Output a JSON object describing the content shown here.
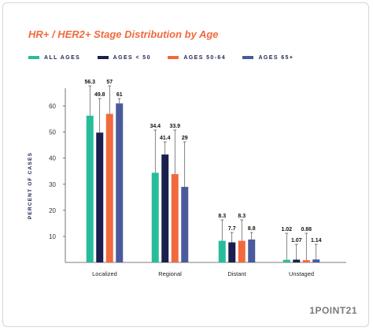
{
  "chart_data": {
    "type": "bar",
    "title": "HR+ / HER2+ Stage Distribution by Age",
    "ylabel": "PERCENT OF CASES",
    "xlabel": "",
    "ylim": [
      0,
      65
    ],
    "yticks": [
      10,
      20,
      30,
      40,
      50,
      60
    ],
    "grid": false,
    "legend_position": "top-left",
    "categories": [
      "Localized",
      "Regional",
      "Distant",
      "Unstaged"
    ],
    "series": [
      {
        "name": "ALL AGES",
        "color": "#27bd9b",
        "values": [
          56.3,
          34.4,
          8.3,
          1.02
        ],
        "labels": [
          "56.3",
          "34.4",
          "8.3",
          "1.02"
        ]
      },
      {
        "name": "AGES < 50",
        "color": "#1a1f4e",
        "values": [
          49.8,
          41.4,
          7.7,
          1.07
        ],
        "labels": [
          "49.8",
          "41.4",
          "7.7",
          "1.07"
        ]
      },
      {
        "name": "AGES 50-64",
        "color": "#f06a3d",
        "values": [
          57,
          33.9,
          8.3,
          0.88
        ],
        "labels": [
          "57",
          "33.9",
          "8.3",
          "0.88"
        ]
      },
      {
        "name": "AGES 65+",
        "color": "#4a5a9c",
        "values": [
          61,
          29,
          8.8,
          1.14
        ],
        "labels": [
          "61",
          "29",
          "8.8",
          "1.14"
        ]
      }
    ]
  },
  "branding": {
    "logo_text": "1POINT21"
  }
}
